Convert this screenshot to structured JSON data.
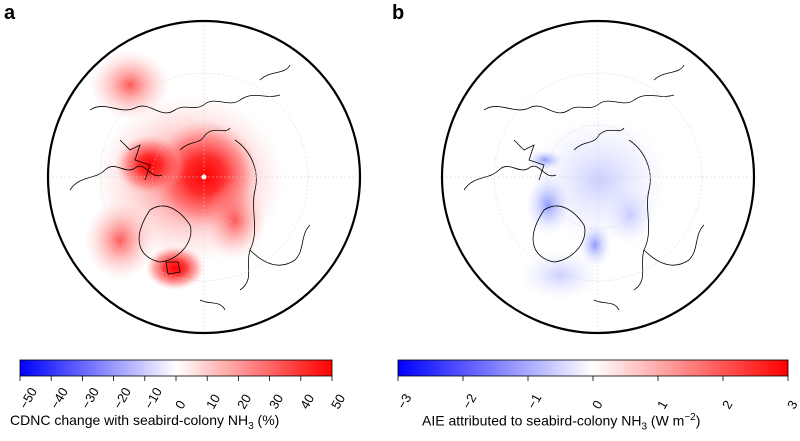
{
  "panels": [
    {
      "label": "a",
      "colorbar": {
        "title_main": "CDNC change with seabird-colony NH",
        "title_sub": "3",
        "title_tail": " (%)",
        "ticks": [
          "−50",
          "−40",
          "−30",
          "−20",
          "−10",
          "0",
          "10",
          "20",
          "30",
          "40",
          "50"
        ],
        "range": [
          -50,
          50
        ]
      }
    },
    {
      "label": "b",
      "colorbar": {
        "title_main": "AIE attributed to seabird-colony NH",
        "title_sub": "3",
        "title_tail": " (W m",
        "title_sup": "−2",
        "title_end": ")",
        "ticks": [
          "−3",
          "−2",
          "−1",
          "0",
          "1",
          "2",
          "3"
        ],
        "range": [
          -3,
          3
        ]
      }
    }
  ],
  "colors": {
    "negative": "#0000ff",
    "neutral": "#ffffff",
    "positive": "#ff0000",
    "coast": "#000000",
    "border": "#000000"
  }
}
